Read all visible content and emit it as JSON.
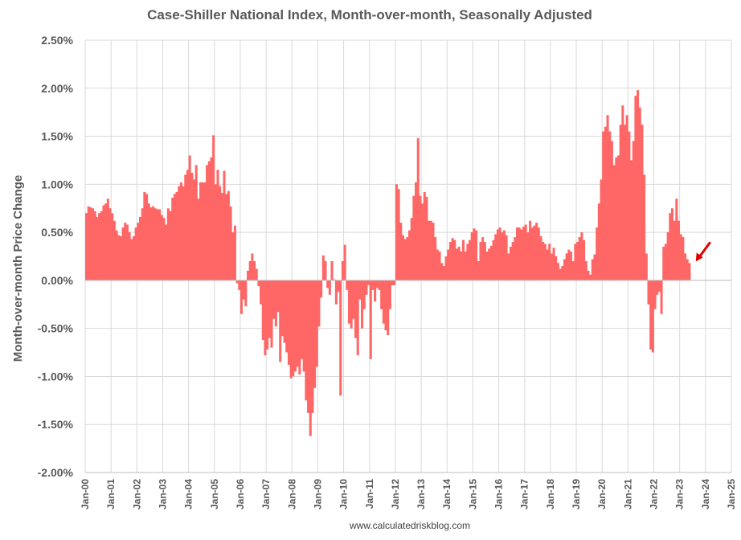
{
  "chart_data": {
    "type": "bar",
    "title": "Case-Shiller National Index, Month-over-month, Seasonally Adjusted",
    "ylabel": "Month-over-month Price Change",
    "xlabel": "",
    "source": "www.calculatedriskblog.com",
    "ylim": [
      -2.0,
      2.5
    ],
    "yticks": [
      2.5,
      2.0,
      1.5,
      1.0,
      0.5,
      0.0,
      -0.5,
      -1.0,
      -1.5,
      -2.0
    ],
    "ytick_labels": [
      "2.50%",
      "2.00%",
      "1.50%",
      "1.00%",
      "0.50%",
      "0.00%",
      "-0.50%",
      "-1.00%",
      "-1.50%",
      "-2.00%"
    ],
    "x_start": "Jan-00",
    "x_end": "Jan-25",
    "xtick_labels": [
      "Jan-00",
      "Jan-01",
      "Jan-02",
      "Jan-03",
      "Jan-04",
      "Jan-05",
      "Jan-06",
      "Jan-07",
      "Jan-08",
      "Jan-09",
      "Jan-10",
      "Jan-11",
      "Jan-12",
      "Jan-13",
      "Jan-14",
      "Jan-15",
      "Jan-16",
      "Jan-17",
      "Jan-18",
      "Jan-19",
      "Jan-20",
      "Jan-21",
      "Jan-22",
      "Jan-23",
      "Jan-24",
      "Jan-25"
    ],
    "grid": true,
    "bar_color": "#ff6666",
    "arrow_color": "#e00000",
    "series": [
      {
        "values": [
          0.7,
          0.77,
          0.76,
          0.75,
          0.72,
          0.66,
          0.7,
          0.72,
          0.78,
          0.8,
          0.85,
          0.75,
          0.7,
          0.62,
          0.52,
          0.47,
          0.46,
          0.55,
          0.6,
          0.58,
          0.5,
          0.43,
          0.46,
          0.55,
          0.6,
          0.66,
          0.75,
          0.92,
          0.9,
          0.8,
          0.76,
          0.77,
          0.75,
          0.74,
          0.74,
          0.68,
          0.65,
          0.58,
          0.75,
          0.72,
          0.86,
          0.9,
          0.92,
          0.98,
          1.02,
          0.98,
          1.1,
          1.15,
          1.3,
          1.12,
          1.05,
          1.2,
          0.85,
          1.02,
          1.02,
          1.02,
          1.2,
          1.24,
          1.28,
          1.51,
          1.0,
          1.15,
          0.98,
          0.91,
          1.14,
          0.9,
          0.93,
          0.77,
          0.5,
          0.57,
          -0.03,
          -0.1,
          -0.35,
          -0.2,
          -0.27,
          0.1,
          0.2,
          0.28,
          0.2,
          0.12,
          -0.06,
          -0.25,
          -0.62,
          -0.78,
          -0.72,
          -0.6,
          -0.7,
          -0.4,
          -0.48,
          -0.33,
          -0.85,
          -0.58,
          -0.65,
          -0.75,
          -0.88,
          -1.02,
          -1.0,
          -0.95,
          -0.9,
          -0.98,
          -0.82,
          -0.95,
          -1.25,
          -1.38,
          -1.62,
          -1.38,
          -1.12,
          -0.9,
          -0.48,
          -0.18,
          0.26,
          0.2,
          -0.08,
          -0.15,
          0.2,
          0.01,
          -0.25,
          -0.12,
          -1.2,
          0.2,
          0.37,
          -0.1,
          -0.45,
          -0.5,
          -0.4,
          -0.6,
          -0.78,
          -0.2,
          -0.5,
          -0.3,
          -0.15,
          -0.05,
          -0.82,
          -0.1,
          -0.22,
          -0.08,
          -0.1,
          -0.3,
          -0.45,
          -0.52,
          -0.57,
          -0.3,
          -0.05,
          -0.05,
          1.0,
          0.95,
          0.6,
          0.47,
          0.43,
          0.45,
          0.52,
          0.65,
          0.88,
          1.02,
          1.48,
          0.88,
          0.8,
          0.92,
          0.87,
          0.62,
          0.62,
          0.6,
          0.45,
          0.32,
          0.3,
          0.18,
          0.15,
          0.25,
          0.32,
          0.4,
          0.44,
          0.42,
          0.33,
          0.35,
          0.3,
          0.42,
          0.3,
          0.38,
          0.42,
          0.5,
          0.54,
          0.52,
          0.2,
          0.4,
          0.45,
          0.4,
          0.3,
          0.33,
          0.36,
          0.42,
          0.48,
          0.53,
          0.55,
          0.5,
          0.52,
          0.47,
          0.28,
          0.35,
          0.4,
          0.45,
          0.55,
          0.55,
          0.53,
          0.56,
          0.58,
          0.5,
          0.62,
          0.55,
          0.57,
          0.6,
          0.55,
          0.46,
          0.4,
          0.38,
          0.32,
          0.38,
          0.28,
          0.34,
          0.25,
          0.18,
          0.12,
          0.15,
          0.22,
          0.28,
          0.32,
          0.3,
          0.2,
          0.38,
          0.4,
          0.45,
          0.5,
          0.42,
          0.2,
          0.1,
          0.06,
          0.22,
          0.27,
          0.55,
          0.8,
          1.05,
          1.55,
          1.6,
          1.72,
          1.55,
          1.45,
          1.2,
          1.28,
          1.3,
          1.62,
          1.82,
          1.62,
          1.72,
          1.55,
          1.25,
          1.45,
          1.92,
          1.98,
          1.8,
          1.62,
          1.1,
          0.28,
          -0.25,
          -0.72,
          -0.75,
          -0.3,
          -0.15,
          -0.12,
          -0.35,
          0.35,
          0.38,
          0.5,
          0.7,
          0.75,
          0.62,
          0.85,
          0.62,
          0.48,
          0.45,
          0.28,
          0.22,
          0.18
        ]
      }
    ]
  }
}
